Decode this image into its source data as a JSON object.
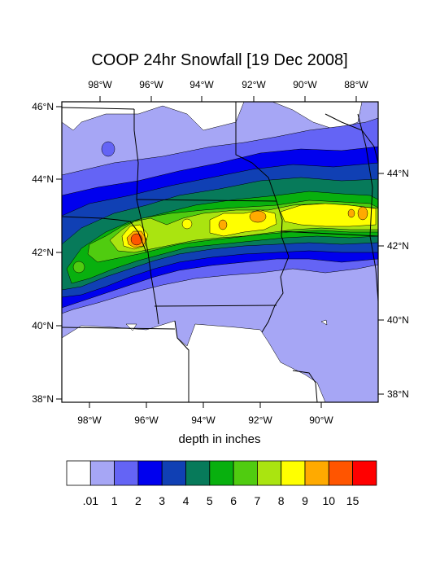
{
  "title": "COOP 24hr Snowfall [19 Dec 2008]",
  "axis_label": "depth in inches",
  "top_lon_labels": [
    "98°W",
    "96°W",
    "94°W",
    "92°W",
    "90°W",
    "88°W"
  ],
  "bottom_lon_labels": [
    "98°W",
    "96°W",
    "94°W",
    "92°W",
    "90°W"
  ],
  "left_lat_labels": [
    "46°N",
    "44°N",
    "42°N",
    "40°N",
    "38°N"
  ],
  "right_lat_labels": [
    "44°N",
    "42°N",
    "40°N",
    "38°N"
  ],
  "legend": {
    "labels": [
      ".01",
      "1",
      "2",
      "3",
      "4",
      "5",
      "6",
      "7",
      "8",
      "9",
      "10",
      "15"
    ],
    "colors": [
      "#ffffff",
      "#a6a6f5",
      "#6464f5",
      "#0000ee",
      "#1040b4",
      "#077a5a",
      "#08b00e",
      "#50cc10",
      "#aae410",
      "#ffff00",
      "#ffaa00",
      "#ff5500",
      "#ff0000"
    ]
  },
  "colors": {
    "light_blue": "#a6a6f5",
    "medium_blue": "#6464f5",
    "blue": "#0000ee",
    "dark_blue": "#1040b4",
    "teal": "#077a5a",
    "green": "#08b00e",
    "light_green": "#50cc10",
    "yellow_green": "#aae410",
    "yellow": "#ffff00",
    "orange": "#ffaa00",
    "red_orange": "#ff5500"
  }
}
